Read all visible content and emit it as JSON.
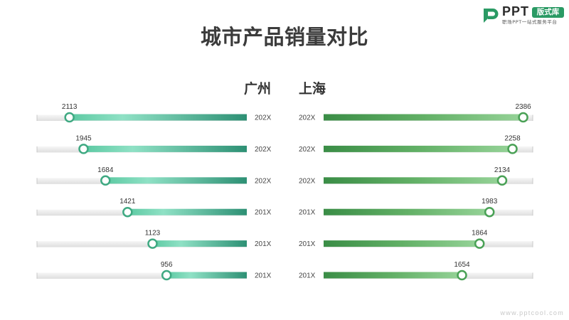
{
  "chart_data": {
    "type": "bar",
    "title": "城市产品销量对比",
    "categories": [
      "202X",
      "202X",
      "202X",
      "201X",
      "201X",
      "201X"
    ],
    "series": [
      {
        "name": "广州",
        "values": [
          2113,
          1945,
          1684,
          1421,
          1123,
          956
        ],
        "color": "#3fa982"
      },
      {
        "name": "上海",
        "values": [
          2386,
          2258,
          2134,
          1983,
          1864,
          1654
        ],
        "color": "#4aa156"
      }
    ],
    "xlim": [
      0,
      2500
    ],
    "grid": false
  },
  "logo": {
    "brand": "PPT",
    "badge": "版式库",
    "tagline": "职场PPT一站式服务平台",
    "color": "#2a9a64"
  },
  "watermark": "www.pptcool.com"
}
